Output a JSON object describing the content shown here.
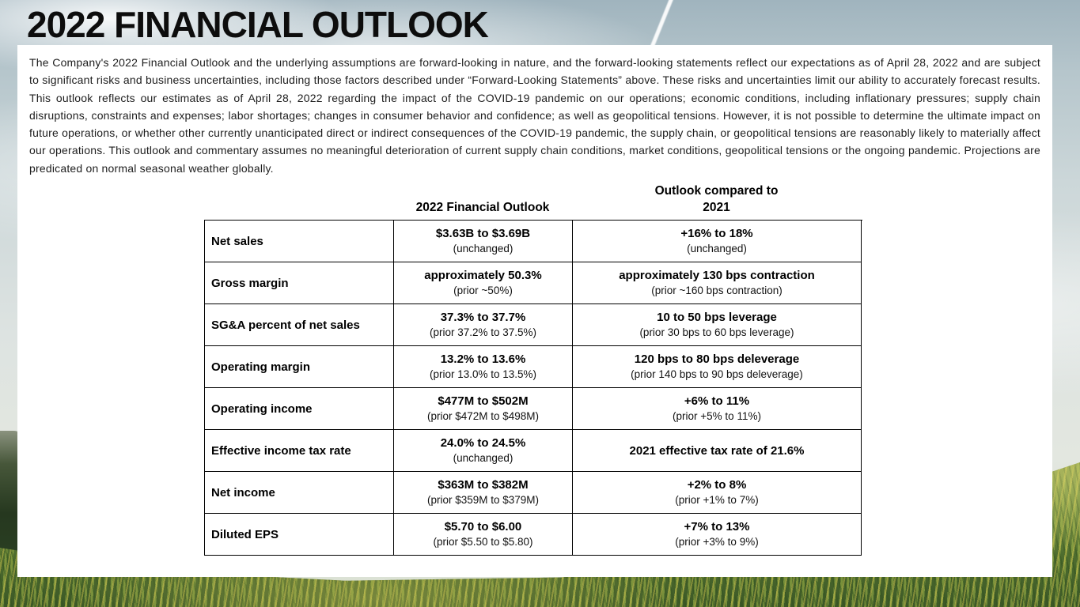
{
  "title": "2022 FINANCIAL OUTLOOK",
  "disclaimer": "The Company's 2022 Financial Outlook and the underlying assumptions are forward-looking in nature, and the forward-looking statements reflect our expectations as of April 28, 2022 and are subject to significant risks and business uncertainties, including those factors described under “Forward-Looking Statements” above. These risks and uncertainties limit our ability to accurately forecast results. This outlook reflects our estimates as of April 28, 2022 regarding the impact of the COVID-19 pandemic on our operations; economic conditions, including inflationary pressures; supply chain disruptions, constraints and expenses; labor shortages; changes in consumer behavior and confidence; as well as geopolitical tensions. However, it is not possible to determine the ultimate impact on future operations, or whether other currently unanticipated direct or indirect consequences of the COVID-19 pandemic, the supply chain, or geopolitical tensions are reasonably likely to materially affect our operations. This outlook and commentary assumes no meaningful deterioration of current supply chain conditions, market conditions, geopolitical tensions or the ongoing pandemic. Projections are predicated on normal seasonal weather globally.",
  "table": {
    "columns": {
      "outlook": "2022 Financial Outlook",
      "comparison": "Outlook compared to 2021"
    },
    "rows": [
      {
        "label": "Net sales",
        "outlook": {
          "main": "$3.63B to $3.69B",
          "sub": "(unchanged)"
        },
        "comparison": {
          "main": "+16% to 18%",
          "sub": "(unchanged)"
        }
      },
      {
        "label": "Gross margin",
        "outlook": {
          "main": "approximately 50.3%",
          "sub": "(prior ~50%)"
        },
        "comparison": {
          "main": "approximately 130 bps contraction",
          "sub": "(prior ~160 bps contraction)"
        }
      },
      {
        "label": "SG&A percent of net sales",
        "outlook": {
          "main": "37.3% to 37.7%",
          "sub": "(prior 37.2% to 37.5%)"
        },
        "comparison": {
          "main": "10 to 50 bps leverage",
          "sub": "(prior 30 bps to 60 bps leverage)"
        }
      },
      {
        "label": "Operating margin",
        "outlook": {
          "main": "13.2% to 13.6%",
          "sub": "(prior 13.0% to 13.5%)"
        },
        "comparison": {
          "main": "120 bps to 80 bps deleverage",
          "sub": "(prior 140 bps to 90 bps deleverage)"
        }
      },
      {
        "label": "Operating income",
        "outlook": {
          "main": "$477M to $502M",
          "sub": "(prior $472M to $498M)"
        },
        "comparison": {
          "main": "+6% to 11%",
          "sub": "(prior +5% to 11%)"
        }
      },
      {
        "label": "Effective income tax rate",
        "outlook": {
          "main": "24.0% to 24.5%",
          "sub": "(unchanged)"
        },
        "comparison": {
          "main": "2021 effective tax rate of 21.6%",
          "sub": ""
        }
      },
      {
        "label": "Net income",
        "outlook": {
          "main": "$363M to $382M",
          "sub": "(prior $359M to $379M)"
        },
        "comparison": {
          "main": "+2% to 8%",
          "sub": "(prior +1% to 7%)"
        }
      },
      {
        "label": "Diluted EPS",
        "outlook": {
          "main": "$5.70 to $6.00",
          "sub": "(prior $5.50 to $5.80)"
        },
        "comparison": {
          "main": "+7% to 13%",
          "sub": "(prior +3% to 9%)"
        }
      }
    ]
  },
  "background": {
    "description": "sky with clouds above, grassy hillside below",
    "sky_color": "#aebfc7",
    "grass_color": "#6a8a3c",
    "tree_color": "#26381f"
  }
}
